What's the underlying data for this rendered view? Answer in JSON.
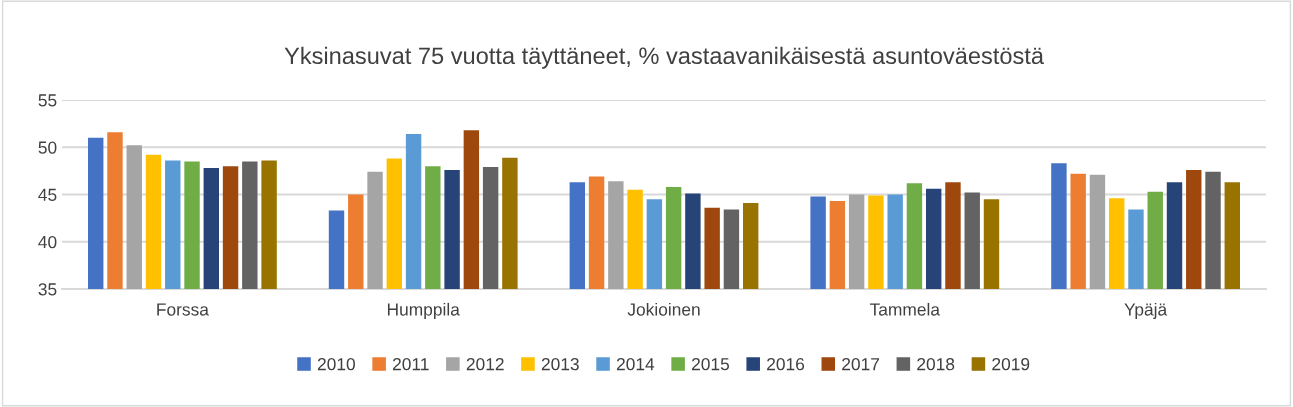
{
  "chart_data": {
    "type": "bar",
    "title": "Yksinasuvat 75 vuotta täyttäneet, % vastaavanikäisestä asuntoväestöstä",
    "categories": [
      "Forssa",
      "Humppila",
      "Jokioinen",
      "Tammela",
      "Ypäjä"
    ],
    "series": [
      {
        "name": "2010",
        "color": "#4472c4",
        "values": [
          51.0,
          43.3,
          46.3,
          44.8,
          48.3
        ]
      },
      {
        "name": "2011",
        "color": "#ed7d31",
        "values": [
          51.6,
          45.0,
          46.9,
          44.3,
          47.2
        ]
      },
      {
        "name": "2012",
        "color": "#a5a5a5",
        "values": [
          50.2,
          47.4,
          46.4,
          45.0,
          47.1
        ]
      },
      {
        "name": "2013",
        "color": "#ffc000",
        "values": [
          49.2,
          48.8,
          45.5,
          44.9,
          44.6
        ]
      },
      {
        "name": "2014",
        "color": "#5b9bd5",
        "values": [
          48.6,
          51.4,
          44.5,
          45.0,
          43.4
        ]
      },
      {
        "name": "2015",
        "color": "#70ad47",
        "values": [
          48.5,
          48.0,
          45.8,
          46.2,
          45.3
        ]
      },
      {
        "name": "2016",
        "color": "#264478",
        "values": [
          47.8,
          47.6,
          45.1,
          45.6,
          46.3
        ]
      },
      {
        "name": "2017",
        "color": "#9e480e",
        "values": [
          48.0,
          51.8,
          43.6,
          46.3,
          47.6
        ]
      },
      {
        "name": "2018",
        "color": "#636363",
        "values": [
          48.5,
          47.9,
          43.4,
          45.2,
          47.4
        ]
      },
      {
        "name": "2019",
        "color": "#997300",
        "values": [
          48.6,
          48.9,
          44.1,
          44.5,
          46.3
        ]
      }
    ],
    "ylim": [
      35,
      55
    ],
    "yticks": [
      35,
      40,
      45,
      50,
      55
    ],
    "grid": "y",
    "legend": "bottom"
  }
}
